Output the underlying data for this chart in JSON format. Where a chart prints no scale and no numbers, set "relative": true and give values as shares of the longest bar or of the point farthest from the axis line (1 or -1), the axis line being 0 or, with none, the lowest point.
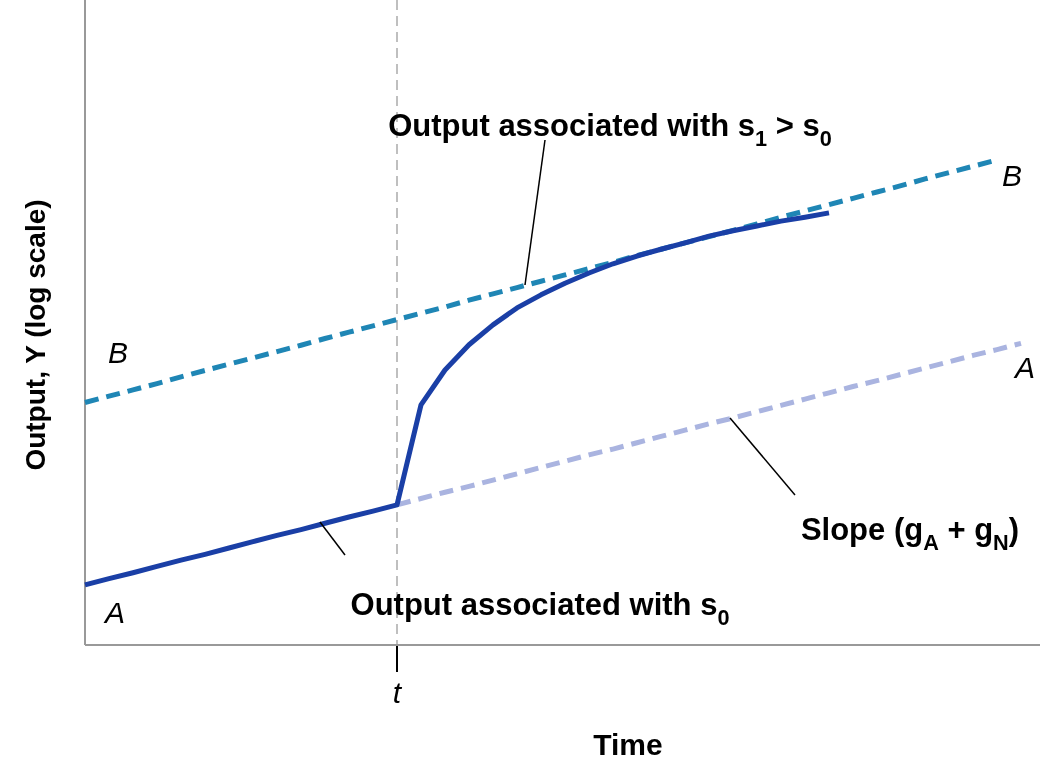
{
  "chart_data": {
    "type": "line",
    "relative": true,
    "xlabel": "Time",
    "ylabel": "Output, Y (log scale)",
    "marker": "none",
    "categories": [
      null,
      null,
      null,
      null,
      null,
      null,
      null,
      null,
      null,
      null,
      null,
      null,
      null,
      null,
      null,
      null,
      null,
      null,
      null,
      null,
      null,
      null,
      null,
      null,
      null,
      null,
      null,
      null,
      null,
      null,
      null,
      null,
      null,
      null,
      null,
      null,
      null,
      null,
      null,
      null
    ],
    "series": [
      {
        "color": "#1f86b5",
        "line_style": "dashed",
        "values": [
          0.5,
          0.513,
          0.526,
          0.539,
          0.553,
          0.566,
          0.579,
          0.592,
          0.605,
          0.618,
          0.632,
          0.645,
          0.658,
          0.671,
          0.684,
          0.697,
          0.711,
          0.724,
          0.737,
          0.75,
          0.763,
          0.776,
          0.789,
          0.803,
          0.816,
          0.829,
          0.842,
          0.855,
          0.868,
          0.882,
          0.895,
          0.908,
          0.921,
          0.934,
          0.947,
          0.961,
          0.974,
          0.987,
          1,
          null
        ]
      },
      {
        "color": "#aab4e0",
        "line_style": "dashed",
        "values": [
          null,
          null,
          null,
          null,
          null,
          null,
          null,
          null,
          null,
          null,
          null,
          null,
          null,
          0.289,
          0.302,
          0.315,
          0.327,
          0.34,
          0.353,
          0.366,
          0.379,
          0.392,
          0.404,
          0.417,
          0.43,
          0.443,
          0.456,
          0.468,
          0.481,
          0.494,
          0.507,
          0.52,
          0.533,
          0.545,
          0.558,
          0.571,
          0.584,
          0.597,
          0.609,
          0.622
        ]
      },
      {
        "color": "#1a3fa6",
        "line_style": "solid",
        "values": [
          0.124,
          0.137,
          0.149,
          0.162,
          0.175,
          0.187,
          0.2,
          0.213,
          0.226,
          0.238,
          0.251,
          0.264,
          0.276,
          0.289,
          0.495,
          0.567,
          0.619,
          0.66,
          0.695,
          0.722,
          0.746,
          0.767,
          0.786,
          0.802,
          0.816,
          0.829,
          0.843,
          0.854,
          0.864,
          0.874,
          0.882,
          0.891,
          null,
          null,
          null,
          null,
          null,
          null,
          null,
          null
        ]
      }
    ],
    "annotations": [
      "Output associated with s$_{1}$ > s$_{0}$",
      "Slope (g$_{A}$ + g$_{N}$)",
      "Output associated with s$_{0}$",
      "B",
      "B",
      "A",
      "A",
      "t"
    ]
  }
}
